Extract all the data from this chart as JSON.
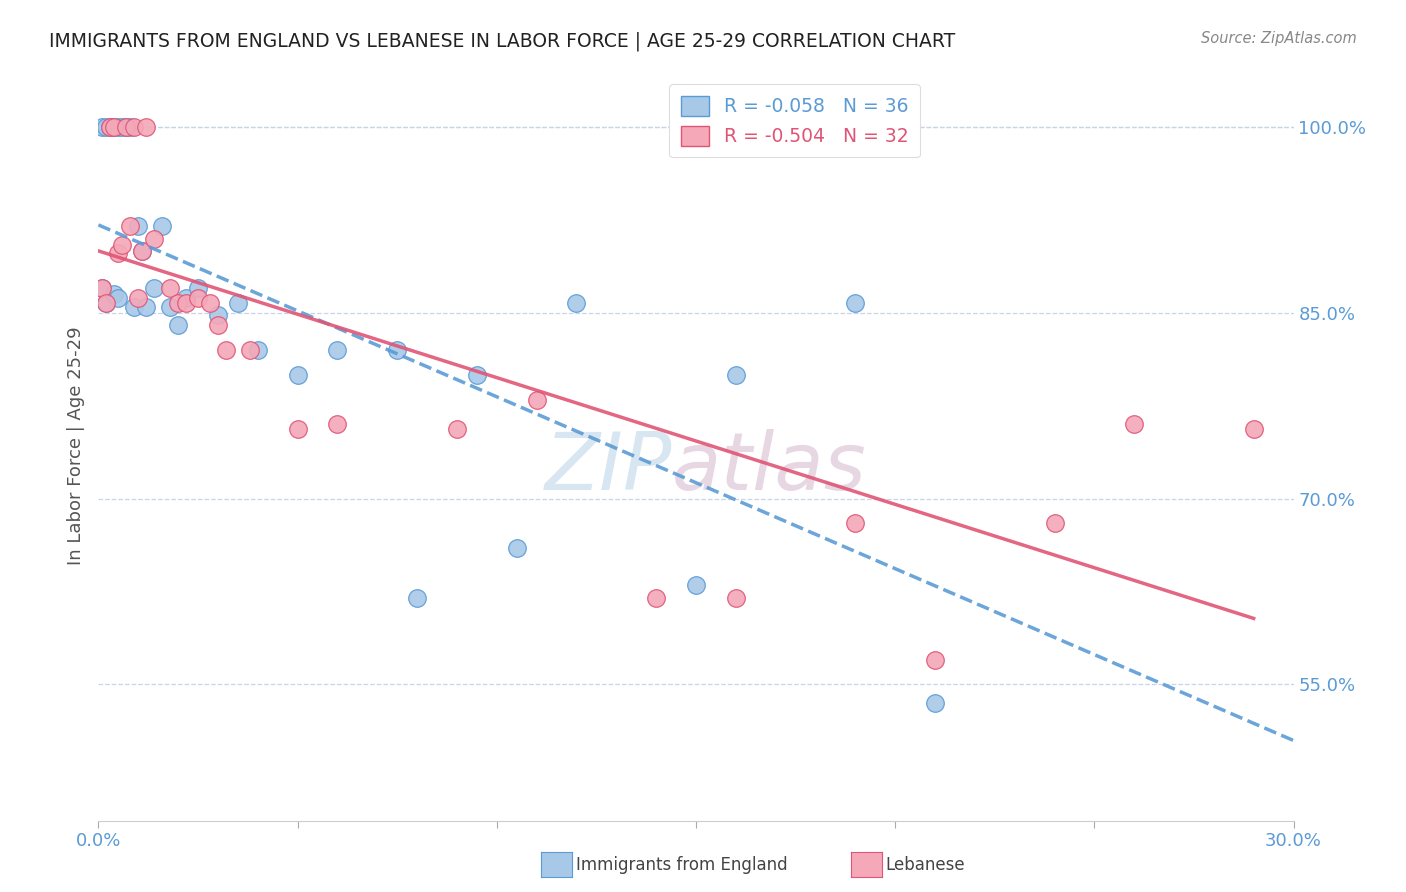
{
  "title": "IMMIGRANTS FROM ENGLAND VS LEBANESE IN LABOR FORCE | AGE 25-29 CORRELATION CHART",
  "source": "Source: ZipAtlas.com",
  "ylabel": "In Labor Force | Age 25-29",
  "xlim": [
    0.0,
    0.3
  ],
  "ylim": [
    0.44,
    1.045
  ],
  "yticks": [
    0.55,
    0.7,
    0.85,
    1.0
  ],
  "ytick_labels": [
    "55.0%",
    "70.0%",
    "85.0%",
    "100.0%"
  ],
  "xticks": [
    0.0,
    0.05,
    0.1,
    0.15,
    0.2,
    0.25,
    0.3
  ],
  "xtick_labels": [
    "0.0%",
    "",
    "",
    "",
    "",
    "",
    "30.0%"
  ],
  "england_color": "#a8c8e8",
  "lebanese_color": "#f4a8b8",
  "england_line_color": "#5b9bd5",
  "lebanese_line_color": "#e05575",
  "england_R": -0.058,
  "england_N": 36,
  "lebanese_R": -0.504,
  "lebanese_N": 32,
  "england_x": [
    0.001,
    0.001,
    0.002,
    0.002,
    0.003,
    0.004,
    0.004,
    0.005,
    0.005,
    0.006,
    0.007,
    0.008,
    0.009,
    0.01,
    0.011,
    0.012,
    0.014,
    0.016,
    0.018,
    0.02,
    0.022,
    0.025,
    0.03,
    0.035,
    0.04,
    0.05,
    0.06,
    0.075,
    0.08,
    0.095,
    0.105,
    0.12,
    0.15,
    0.16,
    0.19,
    0.21
  ],
  "england_y": [
    1.0,
    0.87,
    1.0,
    0.858,
    1.0,
    1.0,
    0.865,
    1.0,
    0.862,
    1.0,
    1.0,
    1.0,
    0.855,
    0.92,
    0.9,
    0.855,
    0.87,
    0.92,
    0.855,
    0.84,
    0.862,
    0.87,
    0.848,
    0.858,
    0.82,
    0.8,
    0.82,
    0.82,
    0.62,
    0.8,
    0.66,
    0.858,
    0.63,
    0.8,
    0.858,
    0.535
  ],
  "lebanese_x": [
    0.001,
    0.002,
    0.003,
    0.004,
    0.005,
    0.006,
    0.007,
    0.008,
    0.009,
    0.01,
    0.011,
    0.012,
    0.014,
    0.018,
    0.02,
    0.022,
    0.025,
    0.028,
    0.03,
    0.032,
    0.038,
    0.05,
    0.06,
    0.09,
    0.11,
    0.14,
    0.16,
    0.19,
    0.21,
    0.24,
    0.26,
    0.29
  ],
  "lebanese_y": [
    0.87,
    0.858,
    1.0,
    1.0,
    0.898,
    0.905,
    1.0,
    0.92,
    1.0,
    0.862,
    0.9,
    1.0,
    0.91,
    0.87,
    0.858,
    0.858,
    0.862,
    0.858,
    0.84,
    0.82,
    0.82,
    0.756,
    0.76,
    0.756,
    0.78,
    0.62,
    0.62,
    0.68,
    0.57,
    0.68,
    0.76,
    0.756
  ],
  "watermark_zip": "ZIP",
  "watermark_atlas": "atlas",
  "background_color": "#ffffff",
  "grid_color": "#c8d4e8",
  "tick_color": "#5b9bd5",
  "title_color": "#222222",
  "ylabel_color": "#555555",
  "legend_box_color": "#f0f4ff"
}
